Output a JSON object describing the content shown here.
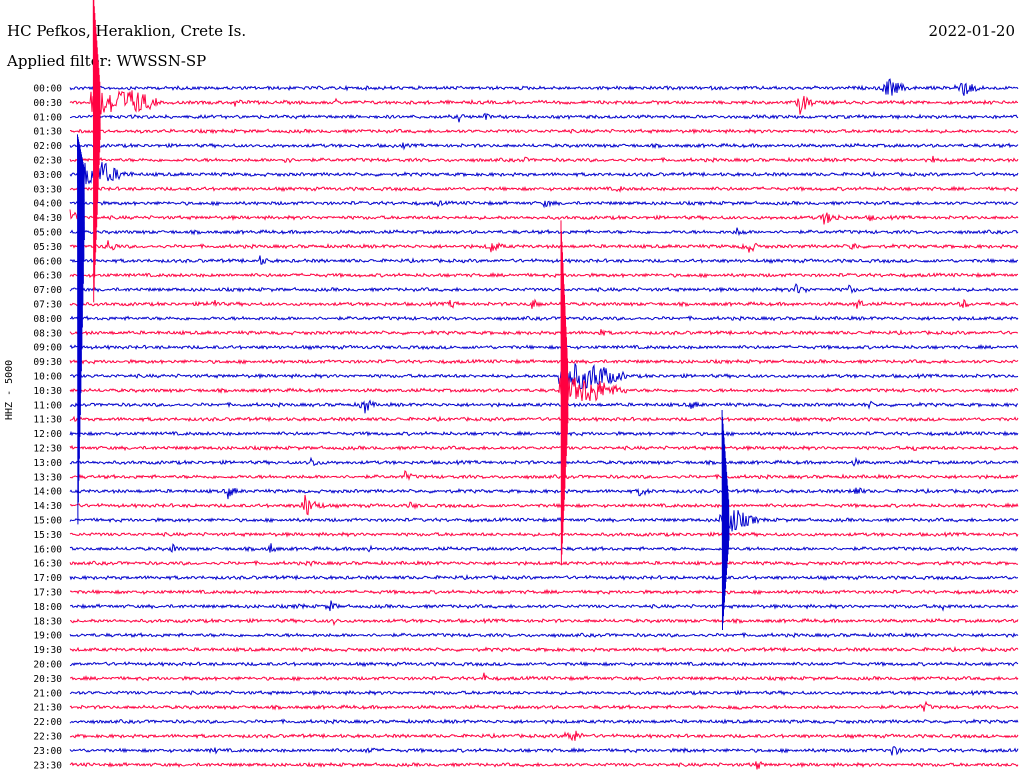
{
  "header": {
    "station": "HC Pefkos, Heraklion, Crete Is.",
    "filter": "Applied filter: WWSSN-SP",
    "date": "2022-01-20",
    "channel_label": "HHZ - 5000"
  },
  "colors": {
    "even_row": "#0000cc",
    "odd_row": "#ff0040",
    "background": "#ffffff"
  },
  "chart_data": {
    "type": "line",
    "title": "HC Pefkos, Heraklion, Crete Is.",
    "subtitle": "Applied filter: WWSSN-SP",
    "ylabel": "HHZ - 5000",
    "row_labels": [
      "00:00",
      "00:30",
      "01:00",
      "01:30",
      "02:00",
      "02:30",
      "03:00",
      "03:30",
      "04:00",
      "04:30",
      "05:00",
      "05:30",
      "06:00",
      "06:30",
      "07:00",
      "07:30",
      "08:00",
      "08:30",
      "09:00",
      "09:30",
      "10:00",
      "10:30",
      "11:00",
      "11:30",
      "12:00",
      "12:30",
      "13:00",
      "13:30",
      "14:00",
      "14:30",
      "15:00",
      "15:30",
      "16:00",
      "16:30",
      "17:00",
      "17:30",
      "18:00",
      "18:30",
      "19:00",
      "19:30",
      "20:00",
      "20:30",
      "21:00",
      "21:30",
      "22:00",
      "22:30",
      "23:00",
      "23:30"
    ],
    "row_minutes": 30,
    "events": [
      {
        "row": 0,
        "minute": 25.8,
        "amp": 14,
        "dur": 1.2
      },
      {
        "row": 0,
        "minute": 28.1,
        "amp": 14,
        "dur": 1.2
      },
      {
        "row": 1,
        "minute": 0.8,
        "amp": 90,
        "dur": 2.0
      },
      {
        "row": 1,
        "minute": 5.2,
        "amp": 6,
        "dur": 0.6
      },
      {
        "row": 1,
        "minute": 8.4,
        "amp": 4,
        "dur": 0.4
      },
      {
        "row": 1,
        "minute": 23.1,
        "amp": 14,
        "dur": 0.8
      },
      {
        "row": 2,
        "minute": 12.3,
        "amp": 6,
        "dur": 0.5
      },
      {
        "row": 2,
        "minute": 13.1,
        "amp": 6,
        "dur": 0.5
      },
      {
        "row": 4,
        "minute": 10.5,
        "amp": 4,
        "dur": 0.8
      },
      {
        "row": 5,
        "minute": 6.8,
        "amp": 5,
        "dur": 0.6
      },
      {
        "row": 5,
        "minute": 14.3,
        "amp": 5,
        "dur": 0.6
      },
      {
        "row": 5,
        "minute": 27.3,
        "amp": 5,
        "dur": 0.5
      },
      {
        "row": 6,
        "minute": 0.5,
        "amp": 40,
        "dur": 1.5
      },
      {
        "row": 7,
        "minute": 17.3,
        "amp": 4,
        "dur": 0.9
      },
      {
        "row": 8,
        "minute": 11.6,
        "amp": 4,
        "dur": 0.8
      },
      {
        "row": 8,
        "minute": 15.0,
        "amp": 4,
        "dur": 1.5
      },
      {
        "row": 9,
        "minute": 0.0,
        "amp": 10,
        "dur": 0.8
      },
      {
        "row": 9,
        "minute": 23.8,
        "amp": 8,
        "dur": 1.5
      },
      {
        "row": 9,
        "minute": 25.3,
        "amp": 5,
        "dur": 0.6
      },
      {
        "row": 10,
        "minute": 21.1,
        "amp": 6,
        "dur": 0.8
      },
      {
        "row": 11,
        "minute": 1.2,
        "amp": 8,
        "dur": 0.8
      },
      {
        "row": 11,
        "minute": 13.3,
        "amp": 9,
        "dur": 0.8
      },
      {
        "row": 11,
        "minute": 21.4,
        "amp": 10,
        "dur": 0.8
      },
      {
        "row": 11,
        "minute": 24.7,
        "amp": 8,
        "dur": 0.6
      },
      {
        "row": 12,
        "minute": 6.0,
        "amp": 6,
        "dur": 0.8
      },
      {
        "row": 14,
        "minute": 22.9,
        "amp": 7,
        "dur": 1.2
      },
      {
        "row": 14,
        "minute": 24.6,
        "amp": 6,
        "dur": 0.8
      },
      {
        "row": 15,
        "minute": 4.4,
        "amp": 8,
        "dur": 0.8
      },
      {
        "row": 15,
        "minute": 12.0,
        "amp": 6,
        "dur": 0.8
      },
      {
        "row": 15,
        "minute": 14.6,
        "amp": 6,
        "dur": 1.0
      },
      {
        "row": 15,
        "minute": 24.9,
        "amp": 7,
        "dur": 0.6
      },
      {
        "row": 15,
        "minute": 28.2,
        "amp": 8,
        "dur": 0.6
      },
      {
        "row": 17,
        "minute": 16.7,
        "amp": 5,
        "dur": 1.0
      },
      {
        "row": 20,
        "minute": 15.6,
        "amp": 70,
        "dur": 2.0
      },
      {
        "row": 21,
        "minute": 15.6,
        "amp": 60,
        "dur": 2.0
      },
      {
        "row": 22,
        "minute": 9.3,
        "amp": 12,
        "dur": 0.6
      },
      {
        "row": 22,
        "minute": 19.6,
        "amp": 6,
        "dur": 1.0
      },
      {
        "row": 22,
        "minute": 25.2,
        "amp": 6,
        "dur": 0.8
      },
      {
        "row": 23,
        "minute": 0.1,
        "amp": 6,
        "dur": 0.5
      },
      {
        "row": 25,
        "minute": 26.7,
        "amp": 4,
        "dur": 0.8
      },
      {
        "row": 26,
        "minute": 7.6,
        "amp": 6,
        "dur": 1.0
      },
      {
        "row": 26,
        "minute": 24.8,
        "amp": 6,
        "dur": 0.5
      },
      {
        "row": 27,
        "minute": 10.6,
        "amp": 6,
        "dur": 0.8
      },
      {
        "row": 28,
        "minute": 5.0,
        "amp": 8,
        "dur": 0.8
      },
      {
        "row": 28,
        "minute": 18.0,
        "amp": 6,
        "dur": 1.0
      },
      {
        "row": 28,
        "minute": 24.8,
        "amp": 7,
        "dur": 0.8
      },
      {
        "row": 29,
        "minute": 7.4,
        "amp": 14,
        "dur": 1.0
      },
      {
        "row": 29,
        "minute": 10.7,
        "amp": 5,
        "dur": 1.0
      },
      {
        "row": 30,
        "minute": 20.7,
        "amp": 25,
        "dur": 1.5
      },
      {
        "row": 32,
        "minute": 3.2,
        "amp": 8,
        "dur": 0.6
      },
      {
        "row": 32,
        "minute": 6.3,
        "amp": 8,
        "dur": 0.6
      },
      {
        "row": 32,
        "minute": 9.4,
        "amp": 6,
        "dur": 0.5
      },
      {
        "row": 33,
        "minute": 7.6,
        "amp": 5,
        "dur": 0.6
      },
      {
        "row": 36,
        "minute": 7.2,
        "amp": 6,
        "dur": 0.6
      },
      {
        "row": 36,
        "minute": 8.2,
        "amp": 8,
        "dur": 0.6
      },
      {
        "row": 36,
        "minute": 27.6,
        "amp": 5,
        "dur": 0.8
      },
      {
        "row": 37,
        "minute": 8.3,
        "amp": 5,
        "dur": 0.6
      },
      {
        "row": 39,
        "minute": 15.1,
        "amp": 5,
        "dur": 0.5
      },
      {
        "row": 41,
        "minute": 13.1,
        "amp": 6,
        "dur": 0.4
      },
      {
        "row": 43,
        "minute": 21.0,
        "amp": 7,
        "dur": 0.6
      },
      {
        "row": 43,
        "minute": 27.0,
        "amp": 8,
        "dur": 0.6
      },
      {
        "row": 45,
        "minute": 15.8,
        "amp": 12,
        "dur": 0.8
      },
      {
        "row": 46,
        "minute": 4.5,
        "amp": 6,
        "dur": 0.5
      },
      {
        "row": 46,
        "minute": 9.4,
        "amp": 7,
        "dur": 0.6
      },
      {
        "row": 46,
        "minute": 19.4,
        "amp": 5,
        "dur": 0.5
      },
      {
        "row": 46,
        "minute": 26.0,
        "amp": 9,
        "dur": 0.6
      },
      {
        "row": 47,
        "minute": 21.7,
        "amp": 8,
        "dur": 0.5
      }
    ],
    "spikes": [
      {
        "row": 1,
        "minute": 0.8,
        "up": 110,
        "down": 200
      },
      {
        "row": 6,
        "minute": 0.3,
        "up": 40,
        "down": 350
      },
      {
        "row": 21,
        "minute": 15.6,
        "up": 170,
        "down": 175
      },
      {
        "row": 30,
        "minute": 20.7,
        "up": 110,
        "down": 110
      }
    ]
  }
}
